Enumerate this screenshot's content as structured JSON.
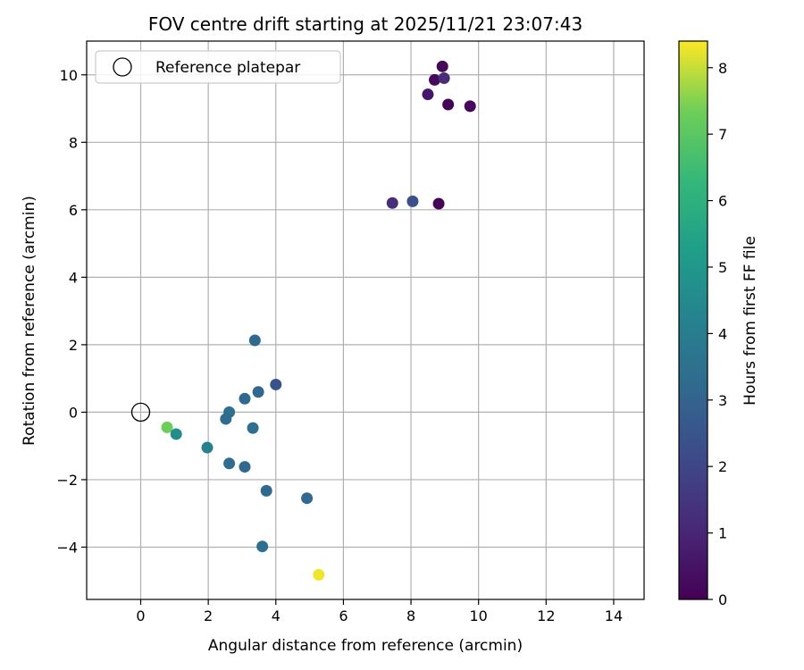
{
  "chart_data": {
    "type": "scatter",
    "title": "FOV centre drift starting at 2025/11/21 23:07:43",
    "xlabel": "Angular distance from reference (arcmin)",
    "ylabel": "Rotation from reference (arcmin)",
    "xlim": [
      -1.6,
      14.9
    ],
    "ylim": [
      -5.55,
      11.0
    ],
    "xticks": [
      0,
      2,
      4,
      6,
      8,
      10,
      12,
      14
    ],
    "yticks": [
      -4,
      -2,
      0,
      2,
      4,
      6,
      8,
      10
    ],
    "grid": true,
    "legend": {
      "position": "top-left",
      "entries": [
        "Reference platepar"
      ]
    },
    "reference": {
      "x": 0,
      "y": 0,
      "label": "Reference platepar"
    },
    "colorbar": {
      "label": "Hours from first FF file",
      "range": [
        0,
        8.4
      ],
      "ticks": [
        0,
        1,
        2,
        3,
        4,
        5,
        6,
        7,
        8
      ],
      "colormap": "viridis"
    },
    "points": [
      {
        "x": 8.93,
        "y": 10.25,
        "t": 0.15
      },
      {
        "x": 8.7,
        "y": 9.85,
        "t": 0.2
      },
      {
        "x": 8.98,
        "y": 9.9,
        "t": 1.2
      },
      {
        "x": 8.5,
        "y": 9.42,
        "t": 0.6
      },
      {
        "x": 9.1,
        "y": 9.12,
        "t": 0.1
      },
      {
        "x": 9.75,
        "y": 9.07,
        "t": 0.2
      },
      {
        "x": 7.45,
        "y": 6.2,
        "t": 1.2
      },
      {
        "x": 8.05,
        "y": 6.25,
        "t": 2.3
      },
      {
        "x": 8.82,
        "y": 6.18,
        "t": 0.1
      },
      {
        "x": 3.38,
        "y": 2.13,
        "t": 3.2
      },
      {
        "x": 4.0,
        "y": 0.82,
        "t": 2.4
      },
      {
        "x": 3.48,
        "y": 0.6,
        "t": 3.1
      },
      {
        "x": 3.08,
        "y": 0.4,
        "t": 3.2
      },
      {
        "x": 2.62,
        "y": 0.0,
        "t": 3.5
      },
      {
        "x": 2.52,
        "y": -0.2,
        "t": 3.3
      },
      {
        "x": 3.32,
        "y": -0.47,
        "t": 3.4
      },
      {
        "x": 0.78,
        "y": -0.45,
        "t": 7.3
      },
      {
        "x": 1.05,
        "y": -0.65,
        "t": 4.6
      },
      {
        "x": 1.97,
        "y": -1.05,
        "t": 4.1
      },
      {
        "x": 2.62,
        "y": -1.52,
        "t": 3.3
      },
      {
        "x": 3.08,
        "y": -1.62,
        "t": 3.1
      },
      {
        "x": 3.72,
        "y": -2.33,
        "t": 3.2
      },
      {
        "x": 4.92,
        "y": -2.55,
        "t": 3.1
      },
      {
        "x": 3.6,
        "y": -3.98,
        "t": 3.4
      },
      {
        "x": 5.27,
        "y": -4.82,
        "t": 8.3
      }
    ]
  }
}
